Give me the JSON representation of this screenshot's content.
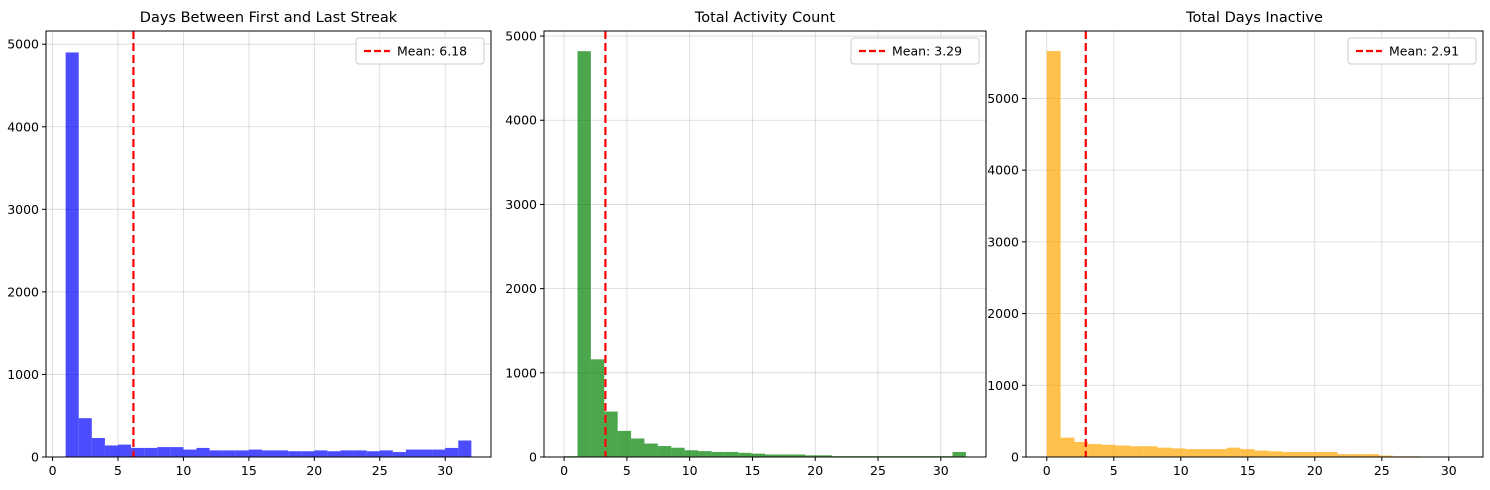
{
  "chart_data": [
    {
      "type": "bar",
      "title": "Days Between First and Last Streak",
      "xlabel": "",
      "ylabel": "",
      "color": "#0000ff",
      "bin_edges": [
        1,
        2,
        3,
        4,
        5,
        6,
        7,
        8,
        9,
        10,
        11,
        12,
        13,
        14,
        15,
        16,
        17,
        18,
        19,
        20,
        21,
        22,
        23,
        24,
        25,
        26,
        27,
        28,
        29,
        30,
        31,
        32
      ],
      "values": [
        4900,
        470,
        230,
        140,
        150,
        110,
        110,
        120,
        120,
        90,
        110,
        80,
        80,
        80,
        90,
        80,
        80,
        70,
        70,
        80,
        70,
        80,
        80,
        70,
        80,
        60,
        90,
        90,
        90,
        110,
        200
      ],
      "mean_label": "Mean: 6.18",
      "mean": 6.18,
      "xlim": [
        -0.5,
        33.5
      ],
      "ylim": [
        0,
        5160
      ],
      "xticks": [
        0,
        5,
        10,
        15,
        20,
        25,
        30
      ],
      "yticks": [
        0,
        1000,
        2000,
        3000,
        4000,
        5000
      ],
      "grid": true,
      "legend_position": "top-right"
    },
    {
      "type": "bar",
      "title": "Total Activity Count",
      "xlabel": "",
      "ylabel": "",
      "color": "#008000",
      "bin_edges": [
        0,
        1.067,
        2.133,
        3.2,
        4.267,
        5.333,
        6.4,
        7.467,
        8.533,
        9.6,
        10.667,
        11.733,
        12.8,
        13.867,
        14.933,
        16,
        17.067,
        18.133,
        19.2,
        20.267,
        21.333,
        22.4,
        23.467,
        24.533,
        25.6,
        26.667,
        27.733,
        28.8,
        29.867,
        30.933,
        32
      ],
      "values": [
        10,
        4820,
        1160,
        540,
        310,
        220,
        160,
        130,
        110,
        80,
        70,
        60,
        60,
        50,
        40,
        30,
        30,
        30,
        20,
        20,
        10,
        10,
        10,
        10,
        10,
        10,
        10,
        10,
        10,
        60
      ],
      "mean_label": "Mean: 3.29",
      "mean": 3.29,
      "xlim": [
        -1.6,
        33.6
      ],
      "ylim": [
        0,
        5060
      ],
      "xticks": [
        0,
        5,
        10,
        15,
        20,
        25,
        30
      ],
      "yticks": [
        0,
        1000,
        2000,
        3000,
        4000,
        5000
      ],
      "grid": true,
      "legend_position": "top-right"
    },
    {
      "type": "bar",
      "title": "Total Days Inactive",
      "xlabel": "",
      "ylabel": "",
      "color": "#ffa500",
      "bin_edges": [
        0,
        1.033,
        2.067,
        3.1,
        4.133,
        5.167,
        6.2,
        7.233,
        8.267,
        9.3,
        10.333,
        11.367,
        12.4,
        13.433,
        14.467,
        15.5,
        16.533,
        17.567,
        18.6,
        19.633,
        20.667,
        21.7,
        22.733,
        23.767,
        24.8,
        25.833,
        26.867,
        27.9,
        28.933,
        29.967,
        31
      ],
      "values": [
        5660,
        270,
        210,
        180,
        170,
        160,
        150,
        150,
        130,
        120,
        110,
        110,
        110,
        130,
        110,
        90,
        80,
        70,
        70,
        70,
        70,
        40,
        40,
        40,
        20,
        10,
        10,
        5,
        5,
        5
      ],
      "mean_label": "Mean: 2.91",
      "mean": 2.91,
      "xlim": [
        -1.55,
        32.55
      ],
      "ylim": [
        0,
        5940
      ],
      "xticks": [
        0,
        5,
        10,
        15,
        20,
        25,
        30
      ],
      "yticks": [
        0,
        1000,
        2000,
        3000,
        4000,
        5000
      ],
      "grid": true,
      "legend_position": "top-right"
    }
  ]
}
